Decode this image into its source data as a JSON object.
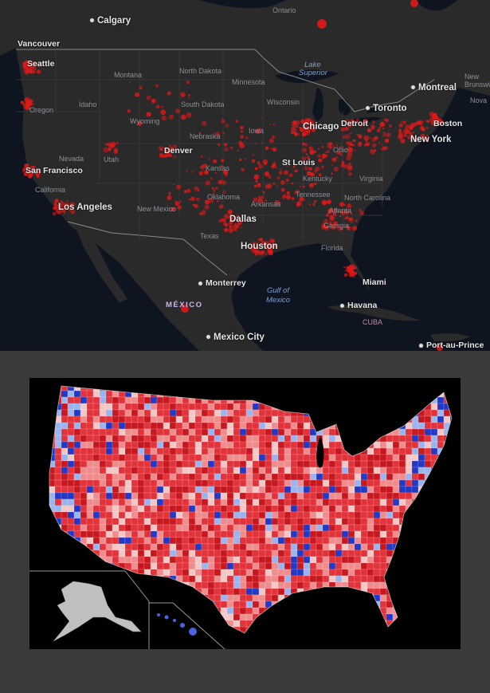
{
  "top_map": {
    "cities": [
      {
        "key": "calgary",
        "name": "Calgary"
      },
      {
        "key": "vancouver",
        "name": "Vancouver"
      },
      {
        "key": "seattle",
        "name": "Seattle"
      },
      {
        "key": "montreal",
        "name": "Montreal"
      },
      {
        "key": "toronto",
        "name": "Toronto"
      },
      {
        "key": "chicago",
        "name": "Chicago"
      },
      {
        "key": "detroit",
        "name": "Detroit"
      },
      {
        "key": "boston",
        "name": "Boston"
      },
      {
        "key": "new_york",
        "name": "New York"
      },
      {
        "key": "san_francisco",
        "name": "San Francisco"
      },
      {
        "key": "denver",
        "name": "Denver"
      },
      {
        "key": "st_louis",
        "name": "St Louis"
      },
      {
        "key": "los_angeles",
        "name": "Los Angeles"
      },
      {
        "key": "dallas",
        "name": "Dallas"
      },
      {
        "key": "houston",
        "name": "Houston"
      },
      {
        "key": "miami",
        "name": "Miami"
      },
      {
        "key": "monterrey",
        "name": "Monterrey"
      },
      {
        "key": "havana",
        "name": "Havana"
      },
      {
        "key": "mexico_city",
        "name": "Mexico City"
      },
      {
        "key": "port_au_prince",
        "name": "Port-au-Prince"
      }
    ],
    "states": {
      "ontario": "Ontario",
      "montana": "Montana",
      "north_dakota": "North Dakota",
      "minnesota": "Minnesota",
      "wisconsin": "Wisconsin",
      "oregon": "Oregon",
      "idaho": "Idaho",
      "south_dakota": "South Dakota",
      "wyoming": "Wyoming",
      "iowa": "Iowa",
      "nebraska": "Nebraska",
      "nevada": "Nevada",
      "utah": "Utah",
      "ohio": "Ohio",
      "kansas": "Kansas",
      "california": "California",
      "kentucky": "Kentucky",
      "virginia": "Virginia",
      "tennessee": "Tennessee",
      "oklahoma": "Oklahoma",
      "arkansas": "Arkansas",
      "north_carolina": "North Carolina",
      "new_mexico": "New Mexico",
      "atlanta": "Atlanta",
      "georgia": "Georgia",
      "texas": "Texas",
      "florida": "Florida",
      "new_brunswick_1": "New",
      "new_brunswick_2": "Brunswick",
      "nova": "Nova"
    },
    "water": {
      "lake_superior_1": "Lake",
      "lake_superior_2": "Superior",
      "gulf_1": "Gulf of",
      "gulf_2": "Mexico"
    },
    "countries": {
      "mexico": "MÉXICO",
      "cuba": "CUBA"
    },
    "colors": {
      "background": "#0e1420",
      "land": "#2a2a2a",
      "hotspot": "#e01818"
    }
  },
  "bottom_map": {
    "colors": {
      "background": "#000000",
      "dark_red": "#c8181f",
      "red": "#e2323a",
      "light_red": "#f08c8e",
      "pink": "#f4c6c6",
      "light_blue": "#9bb3ee",
      "blue": "#4b63dd",
      "dark_blue": "#2338c4",
      "inset_land": "#c0c0c0"
    }
  }
}
